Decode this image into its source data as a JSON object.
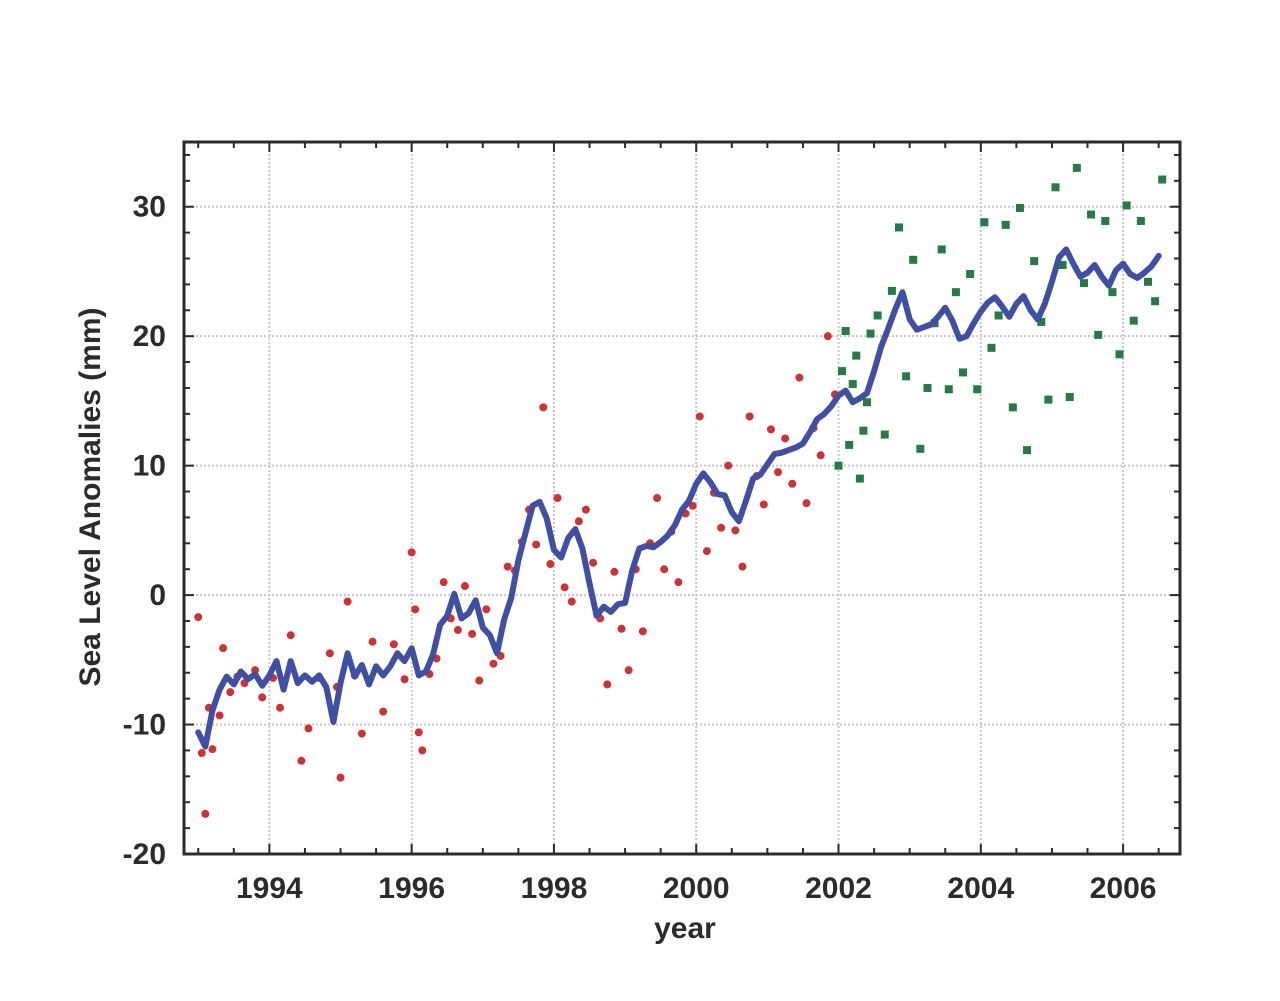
{
  "chart_data": {
    "type": "scatter",
    "title": "",
    "xlabel": "year",
    "ylabel": "Sea Level Anomalies (mm)",
    "xlim": [
      1992.8,
      2006.8
    ],
    "ylim": [
      -20,
      35
    ],
    "xticks": [
      1994,
      1996,
      1998,
      2000,
      2002,
      2004,
      2006
    ],
    "xtick_labels": [
      "1994",
      "1996",
      "1998",
      "2000",
      "2002",
      "2004",
      "2006"
    ],
    "yticks": [
      -20,
      -10,
      0,
      10,
      20,
      30
    ],
    "ytick_labels": [
      "-20",
      "-10",
      "0",
      "10",
      "20",
      "30"
    ],
    "grid": true,
    "legend": "none",
    "series": [
      {
        "marker": "circle",
        "color": "#cc3333",
        "points": [
          [
            1993.0,
            -1.7
          ],
          [
            1993.05,
            -12.2
          ],
          [
            1993.1,
            -16.9
          ],
          [
            1993.15,
            -8.7
          ],
          [
            1993.2,
            -11.9
          ],
          [
            1993.3,
            -9.3
          ],
          [
            1993.35,
            -4.1
          ],
          [
            1993.45,
            -7.5
          ],
          [
            1993.55,
            -6.3
          ],
          [
            1993.65,
            -6.8
          ],
          [
            1993.8,
            -5.8
          ],
          [
            1993.9,
            -7.9
          ],
          [
            1994.05,
            -6.4
          ],
          [
            1994.15,
            -8.7
          ],
          [
            1994.3,
            -3.1
          ],
          [
            1994.45,
            -12.8
          ],
          [
            1994.55,
            -10.3
          ],
          [
            1994.7,
            -6.4
          ],
          [
            1994.85,
            -4.5
          ],
          [
            1994.95,
            -7.1
          ],
          [
            1995.0,
            -14.1
          ],
          [
            1995.1,
            -0.5
          ],
          [
            1995.2,
            -6.2
          ],
          [
            1995.3,
            -10.7
          ],
          [
            1995.45,
            -3.6
          ],
          [
            1995.6,
            -9.0
          ],
          [
            1995.75,
            -3.8
          ],
          [
            1995.9,
            -6.5
          ],
          [
            1996.0,
            3.3
          ],
          [
            1996.05,
            -1.1
          ],
          [
            1996.1,
            -10.6
          ],
          [
            1996.15,
            -12.0
          ],
          [
            1996.25,
            -6.1
          ],
          [
            1996.35,
            -4.9
          ],
          [
            1996.45,
            1.0
          ],
          [
            1996.55,
            -1.8
          ],
          [
            1996.65,
            -2.7
          ],
          [
            1996.75,
            0.7
          ],
          [
            1996.85,
            -3.0
          ],
          [
            1996.95,
            -6.6
          ],
          [
            1997.05,
            -1.1
          ],
          [
            1997.15,
            -5.3
          ],
          [
            1997.25,
            -4.7
          ],
          [
            1997.35,
            2.2
          ],
          [
            1997.45,
            1.9
          ],
          [
            1997.55,
            4.1
          ],
          [
            1997.65,
            6.6
          ],
          [
            1997.75,
            3.9
          ],
          [
            1997.85,
            14.5
          ],
          [
            1997.95,
            2.4
          ],
          [
            1998.05,
            7.5
          ],
          [
            1998.15,
            0.6
          ],
          [
            1998.25,
            -0.5
          ],
          [
            1998.35,
            5.7
          ],
          [
            1998.45,
            6.6
          ],
          [
            1998.55,
            2.5
          ],
          [
            1998.65,
            -1.8
          ],
          [
            1998.75,
            -6.9
          ],
          [
            1998.85,
            1.8
          ],
          [
            1998.95,
            -2.6
          ],
          [
            1999.05,
            -5.8
          ],
          [
            1999.15,
            2.0
          ],
          [
            1999.25,
            -2.8
          ],
          [
            1999.35,
            4.0
          ],
          [
            1999.45,
            7.5
          ],
          [
            1999.55,
            2.0
          ],
          [
            1999.65,
            4.9
          ],
          [
            1999.75,
            1.0
          ],
          [
            1999.85,
            6.3
          ],
          [
            1999.95,
            6.9
          ],
          [
            2000.05,
            13.8
          ],
          [
            2000.15,
            3.4
          ],
          [
            2000.25,
            7.9
          ],
          [
            2000.35,
            5.2
          ],
          [
            2000.45,
            10.0
          ],
          [
            2000.55,
            5.0
          ],
          [
            2000.65,
            2.2
          ],
          [
            2000.75,
            13.8
          ],
          [
            2000.85,
            9.2
          ],
          [
            2000.95,
            7.0
          ],
          [
            2001.05,
            12.8
          ],
          [
            2001.15,
            9.5
          ],
          [
            2001.25,
            12.1
          ],
          [
            2001.35,
            8.6
          ],
          [
            2001.45,
            16.8
          ],
          [
            2001.55,
            7.1
          ],
          [
            2001.65,
            12.9
          ],
          [
            2001.75,
            10.8
          ],
          [
            2001.85,
            20.0
          ],
          [
            2001.95,
            15.5
          ]
        ]
      },
      {
        "marker": "square",
        "color": "#267a43",
        "points": [
          [
            2002.0,
            10.0
          ],
          [
            2002.05,
            17.3
          ],
          [
            2002.1,
            20.4
          ],
          [
            2002.15,
            11.6
          ],
          [
            2002.2,
            16.3
          ],
          [
            2002.25,
            18.5
          ],
          [
            2002.3,
            9.0
          ],
          [
            2002.35,
            12.7
          ],
          [
            2002.4,
            14.9
          ],
          [
            2002.45,
            20.2
          ],
          [
            2002.55,
            21.6
          ],
          [
            2002.65,
            12.4
          ],
          [
            2002.75,
            23.5
          ],
          [
            2002.85,
            28.4
          ],
          [
            2002.95,
            16.9
          ],
          [
            2003.05,
            25.9
          ],
          [
            2003.15,
            11.3
          ],
          [
            2003.25,
            16.0
          ],
          [
            2003.35,
            21.0
          ],
          [
            2003.45,
            26.7
          ],
          [
            2003.55,
            15.9
          ],
          [
            2003.65,
            23.4
          ],
          [
            2003.75,
            17.2
          ],
          [
            2003.85,
            24.8
          ],
          [
            2003.95,
            15.9
          ],
          [
            2004.05,
            28.8
          ],
          [
            2004.15,
            19.1
          ],
          [
            2004.25,
            21.6
          ],
          [
            2004.35,
            28.6
          ],
          [
            2004.45,
            14.5
          ],
          [
            2004.55,
            29.9
          ],
          [
            2004.65,
            11.2
          ],
          [
            2004.75,
            25.8
          ],
          [
            2004.85,
            21.1
          ],
          [
            2004.95,
            15.1
          ],
          [
            2005.05,
            31.5
          ],
          [
            2005.15,
            25.5
          ],
          [
            2005.25,
            15.3
          ],
          [
            2005.35,
            33.0
          ],
          [
            2005.45,
            24.1
          ],
          [
            2005.55,
            29.4
          ],
          [
            2005.65,
            20.1
          ],
          [
            2005.75,
            28.9
          ],
          [
            2005.85,
            23.4
          ],
          [
            2005.95,
            18.6
          ],
          [
            2006.05,
            30.1
          ],
          [
            2006.15,
            21.2
          ],
          [
            2006.25,
            28.9
          ],
          [
            2006.35,
            24.2
          ],
          [
            2006.45,
            22.7
          ],
          [
            2006.55,
            32.1
          ]
        ]
      },
      {
        "marker": "line",
        "color": "#3f4fa3",
        "points": [
          [
            1993.0,
            -10.6
          ],
          [
            1993.1,
            -11.7
          ],
          [
            1993.2,
            -8.9
          ],
          [
            1993.3,
            -7.3
          ],
          [
            1993.4,
            -6.3
          ],
          [
            1993.5,
            -6.9
          ],
          [
            1993.6,
            -5.9
          ],
          [
            1993.7,
            -6.5
          ],
          [
            1993.8,
            -6.1
          ],
          [
            1993.9,
            -7.0
          ],
          [
            1994.0,
            -6.2
          ],
          [
            1994.1,
            -5.1
          ],
          [
            1994.2,
            -7.3
          ],
          [
            1994.3,
            -5.1
          ],
          [
            1994.4,
            -6.8
          ],
          [
            1994.5,
            -6.2
          ],
          [
            1994.6,
            -6.7
          ],
          [
            1994.7,
            -6.2
          ],
          [
            1994.8,
            -7.1
          ],
          [
            1994.9,
            -9.8
          ],
          [
            1995.0,
            -6.8
          ],
          [
            1995.1,
            -4.5
          ],
          [
            1995.2,
            -6.3
          ],
          [
            1995.3,
            -5.4
          ],
          [
            1995.4,
            -6.9
          ],
          [
            1995.5,
            -5.5
          ],
          [
            1995.6,
            -6.2
          ],
          [
            1995.7,
            -5.5
          ],
          [
            1995.8,
            -4.5
          ],
          [
            1995.9,
            -5.1
          ],
          [
            1996.0,
            -4.1
          ],
          [
            1996.1,
            -6.2
          ],
          [
            1996.2,
            -5.9
          ],
          [
            1996.3,
            -4.6
          ],
          [
            1996.4,
            -2.3
          ],
          [
            1996.5,
            -1.6
          ],
          [
            1996.6,
            0.1
          ],
          [
            1996.7,
            -1.8
          ],
          [
            1996.8,
            -1.4
          ],
          [
            1996.9,
            -0.4
          ],
          [
            1997.0,
            -2.5
          ],
          [
            1997.1,
            -3.1
          ],
          [
            1997.2,
            -4.5
          ],
          [
            1997.3,
            -1.9
          ],
          [
            1997.4,
            -0.2
          ],
          [
            1997.5,
            2.7
          ],
          [
            1997.6,
            4.8
          ],
          [
            1997.7,
            6.9
          ],
          [
            1997.8,
            7.2
          ],
          [
            1997.9,
            5.9
          ],
          [
            1998.0,
            3.5
          ],
          [
            1998.1,
            2.9
          ],
          [
            1998.2,
            4.4
          ],
          [
            1998.3,
            5.1
          ],
          [
            1998.4,
            3.6
          ],
          [
            1998.5,
            0.9
          ],
          [
            1998.6,
            -1.6
          ],
          [
            1998.7,
            -0.9
          ],
          [
            1998.8,
            -1.3
          ],
          [
            1998.9,
            -0.7
          ],
          [
            1999.0,
            -0.6
          ],
          [
            1999.1,
            1.9
          ],
          [
            1999.2,
            3.6
          ],
          [
            1999.3,
            3.8
          ],
          [
            1999.4,
            3.7
          ],
          [
            1999.5,
            4.1
          ],
          [
            1999.6,
            4.6
          ],
          [
            1999.7,
            5.4
          ],
          [
            1999.8,
            6.6
          ],
          [
            1999.9,
            7.3
          ],
          [
            2000.0,
            8.6
          ],
          [
            2000.1,
            9.4
          ],
          [
            2000.2,
            8.7
          ],
          [
            2000.3,
            7.8
          ],
          [
            2000.4,
            7.7
          ],
          [
            2000.5,
            6.4
          ],
          [
            2000.6,
            5.7
          ],
          [
            2000.7,
            7.3
          ],
          [
            2000.8,
            9.0
          ],
          [
            2000.9,
            9.3
          ],
          [
            2001.0,
            10.1
          ],
          [
            2001.1,
            10.9
          ],
          [
            2001.2,
            11.0
          ],
          [
            2001.3,
            11.2
          ],
          [
            2001.4,
            11.4
          ],
          [
            2001.5,
            11.7
          ],
          [
            2001.6,
            12.6
          ],
          [
            2001.7,
            13.6
          ],
          [
            2001.8,
            14.0
          ],
          [
            2001.9,
            14.6
          ],
          [
            2002.0,
            15.4
          ],
          [
            2002.1,
            15.8
          ],
          [
            2002.2,
            14.9
          ],
          [
            2002.3,
            15.2
          ],
          [
            2002.4,
            15.6
          ],
          [
            2002.5,
            17.3
          ],
          [
            2002.6,
            19.2
          ],
          [
            2002.7,
            20.6
          ],
          [
            2002.8,
            22.1
          ],
          [
            2002.9,
            23.4
          ],
          [
            2003.0,
            21.3
          ],
          [
            2003.1,
            20.5
          ],
          [
            2003.2,
            20.7
          ],
          [
            2003.3,
            20.9
          ],
          [
            2003.4,
            21.5
          ],
          [
            2003.5,
            22.2
          ],
          [
            2003.6,
            21.2
          ],
          [
            2003.7,
            19.8
          ],
          [
            2003.8,
            20.0
          ],
          [
            2003.9,
            21.0
          ],
          [
            2004.0,
            21.9
          ],
          [
            2004.1,
            22.6
          ],
          [
            2004.2,
            23.0
          ],
          [
            2004.3,
            22.3
          ],
          [
            2004.4,
            21.5
          ],
          [
            2004.5,
            22.5
          ],
          [
            2004.6,
            23.1
          ],
          [
            2004.7,
            22.0
          ],
          [
            2004.8,
            21.3
          ],
          [
            2004.9,
            22.5
          ],
          [
            2005.0,
            24.2
          ],
          [
            2005.1,
            26.1
          ],
          [
            2005.2,
            26.7
          ],
          [
            2005.3,
            25.6
          ],
          [
            2005.4,
            24.6
          ],
          [
            2005.5,
            24.9
          ],
          [
            2005.6,
            25.5
          ],
          [
            2005.7,
            24.6
          ],
          [
            2005.8,
            23.9
          ],
          [
            2005.9,
            25.1
          ],
          [
            2006.0,
            25.6
          ],
          [
            2006.1,
            24.8
          ],
          [
            2006.2,
            24.5
          ],
          [
            2006.3,
            24.9
          ],
          [
            2006.4,
            25.4
          ],
          [
            2006.5,
            26.2
          ]
        ]
      }
    ]
  }
}
